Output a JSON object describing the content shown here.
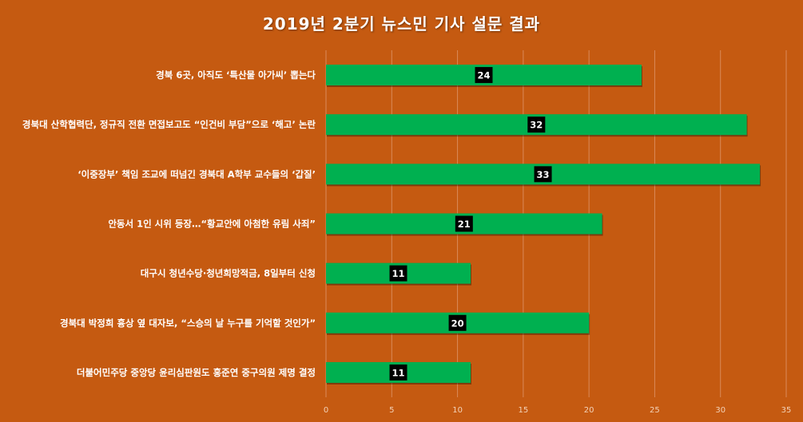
{
  "chart_data": {
    "type": "bar",
    "orientation": "horizontal",
    "title": "2019년 2분기 뉴스민 기사 설문 결과",
    "categories": [
      "경북 6곳, 아직도 ‘특산물 아가씨’ 뽑는다",
      "경북대 산학협력단, 정규직 전환 면접보고도 “인건비 부담”으로 ‘해고’ 논란",
      "‘이중장부’ 책임 조교에 떠넘긴 경북대 A학부 교수들의 ‘갑질’",
      "안동서 1인 시위 등장…“황교안에 아첨한 유림 사죄”",
      "대구시 청년수당·청년희망적금, 8일부터 신청",
      "경북대 박정희 흉상 옆 대자보, “스승의 날 누구를 기억할 것인가”",
      "더불어민주당 중앙당 윤리심판원도 홍준연 중구의원 제명 결정"
    ],
    "values": [
      24,
      32,
      33,
      21,
      11,
      20,
      11
    ],
    "xlim": [
      0,
      35
    ],
    "xticks": [
      0,
      5,
      10,
      15,
      20,
      25,
      30,
      35
    ],
    "grid": true,
    "legend": "none",
    "colors": {
      "background": "#C55A11",
      "bar": "#00B050",
      "data_label_bg": "#000000",
      "grid": "#D98A5A"
    }
  }
}
